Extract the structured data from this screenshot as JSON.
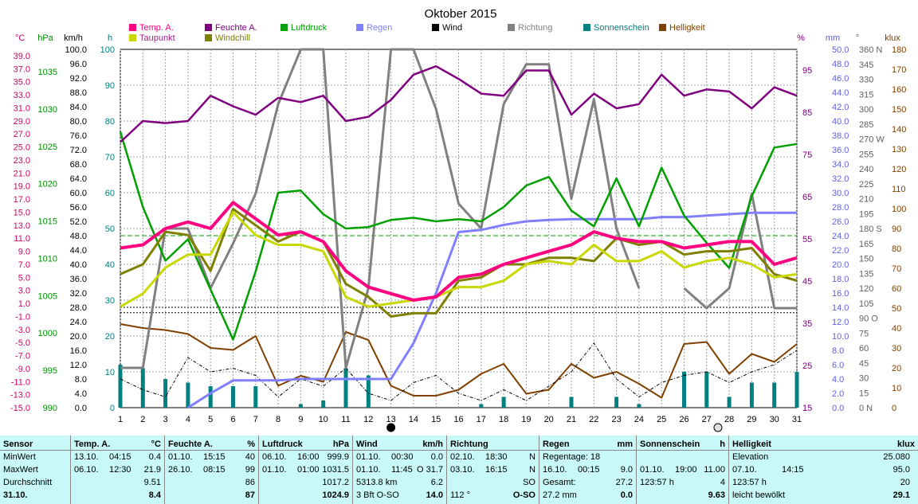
{
  "title": "Oktober 2015",
  "legend": [
    {
      "label": "Temp. A.",
      "color": "#ff0080"
    },
    {
      "label": "Taupunkt",
      "color": "#c8d800"
    },
    {
      "label": "Feuchte A.",
      "color": "#800080"
    },
    {
      "label": "Windchill",
      "color": "#808000"
    },
    {
      "label": "Luftdruck",
      "color": "#00a000"
    },
    {
      "label": "Regen",
      "color": "#8080ff"
    },
    {
      "label": "Wind",
      "color": "#000000"
    },
    {
      "label": "Richtung",
      "color": "#808080"
    },
    {
      "label": "Sonnenschein",
      "color": "#008080"
    },
    {
      "label": "Helligkeit",
      "color": "#804000"
    }
  ],
  "unit_labels": {
    "celsius": "°C",
    "hpa": "hPa",
    "kmh": "km/h",
    "h": "h",
    "pct": "%",
    "mm": "mm",
    "deg": "°",
    "klux": "klux"
  },
  "axes": {
    "celsius": [
      "39.0",
      "37.0",
      "35.0",
      "33.0",
      "31.0",
      "29.0",
      "27.0",
      "25.0",
      "23.0",
      "21.0",
      "19.0",
      "17.0",
      "15.0",
      "13.0",
      "11.0",
      "9.0",
      "7.0",
      "5.0",
      "3.0",
      "1.0",
      "-1.0",
      "-3.0",
      "-5.0",
      "-7.0",
      "-9.0",
      "-11.0",
      "-13.0",
      "-15.0"
    ],
    "hpa": [
      "1035",
      "1030",
      "1025",
      "1020",
      "1015",
      "1010",
      "1005",
      "1000",
      "995",
      "990"
    ],
    "kmh": [
      "100.0",
      "96.0",
      "92.0",
      "88.0",
      "84.0",
      "80.0",
      "76.0",
      "72.0",
      "68.0",
      "64.0",
      "60.0",
      "56.0",
      "52.0",
      "48.0",
      "44.0",
      "40.0",
      "36.0",
      "32.0",
      "28.0",
      "24.0",
      "20.0",
      "16.0",
      "12.0",
      "8.0",
      "4.0",
      "0.0"
    ],
    "hours": [
      "100",
      "90",
      "80",
      "70",
      "60",
      "50",
      "40",
      "30",
      "20",
      "10",
      "0"
    ],
    "pct": [
      "95",
      "85",
      "75",
      "65",
      "55",
      "45",
      "35",
      "25",
      "15"
    ],
    "mm": [
      "50.0",
      "48.0",
      "46.0",
      "44.0",
      "42.0",
      "40.0",
      "38.0",
      "36.0",
      "34.0",
      "32.0",
      "30.0",
      "28.0",
      "26.0",
      "24.0",
      "22.0",
      "20.0",
      "18.0",
      "16.0",
      "14.0",
      "12.0",
      "10.0",
      "8.0",
      "6.0",
      "4.0",
      "2.0",
      "0.0"
    ],
    "deg": [
      "360 N",
      "345",
      "330",
      "315",
      "300",
      "285",
      "270 W",
      "255",
      "240",
      "225",
      "210",
      "195",
      "180 S",
      "165",
      "150",
      "135",
      "120",
      "105",
      "90 O",
      "75",
      "60",
      "45",
      "30",
      "15",
      "0 N"
    ],
    "klux": [
      "180",
      "170",
      "160",
      "150",
      "140",
      "130",
      "120",
      "110",
      "100",
      "90",
      "80",
      "70",
      "60",
      "50",
      "40",
      "30",
      "20",
      "10",
      "0"
    ],
    "days": [
      "1",
      "2",
      "3",
      "4",
      "5",
      "6",
      "7",
      "8",
      "9",
      "10",
      "11",
      "12",
      "13",
      "14",
      "15",
      "16",
      "17",
      "18",
      "19",
      "20",
      "21",
      "22",
      "23",
      "24",
      "25",
      "26",
      "27",
      "28",
      "29",
      "30",
      "31"
    ]
  },
  "chart_data": {
    "type": "line",
    "title": "Oktober 2015",
    "x": [
      1,
      2,
      3,
      4,
      5,
      6,
      7,
      8,
      9,
      10,
      11,
      12,
      13,
      14,
      15,
      16,
      17,
      18,
      19,
      20,
      21,
      22,
      23,
      24,
      25,
      26,
      27,
      28,
      29,
      30,
      31
    ],
    "series": [
      {
        "name": "Temp. A.",
        "unit": "°C",
        "color": "#ff0080",
        "values": [
          9.5,
          10,
          12.5,
          13.5,
          12.5,
          16.5,
          14,
          11.5,
          12,
          10.5,
          6,
          3.5,
          2.5,
          1.5,
          2,
          5,
          5.5,
          7,
          8,
          9,
          10,
          12,
          11,
          10.5,
          10.5,
          9.5,
          10,
          10.5,
          10.5,
          7,
          8
        ]
      },
      {
        "name": "Taupunkt",
        "unit": "°C",
        "color": "#c8d800",
        "values": [
          0.5,
          2.5,
          6.5,
          8.5,
          8.5,
          15,
          11.5,
          10,
          10,
          9,
          2,
          0.5,
          1,
          1.5,
          2,
          3.5,
          3.5,
          4.5,
          7,
          7.5,
          7,
          10,
          7.5,
          7.5,
          9,
          6.5,
          7.5,
          8,
          7,
          5,
          5.5
        ]
      },
      {
        "name": "Feuchte A.",
        "unit": "%",
        "color": "#800080",
        "values": [
          78,
          83,
          82.5,
          83,
          89,
          86.5,
          84.5,
          88.5,
          87.5,
          89,
          83,
          84,
          88,
          94,
          96,
          93,
          89.5,
          89,
          95,
          95,
          84.5,
          89.5,
          86,
          87,
          94,
          89,
          90.5,
          90,
          86,
          91,
          89
        ]
      },
      {
        "name": "Windchill",
        "unit": "°C",
        "color": "#808000",
        "values": [
          5.5,
          7,
          12,
          11.5,
          6,
          15.5,
          13,
          10.5,
          12,
          10.5,
          4,
          2,
          -1,
          -0.5,
          -0.5,
          4.5,
          5,
          7,
          7,
          8,
          8,
          7.5,
          11,
          10,
          10.5,
          8.5,
          9,
          9,
          9.5,
          5.5,
          4.5
        ]
      },
      {
        "name": "Luftdruck",
        "unit": "hPa",
        "color": "#00a000",
        "values": [
          1028.5,
          1018,
          1010.5,
          1013.5,
          1006.5,
          999.5,
          1009,
          1020,
          1020.3,
          1017,
          1015,
          1015.2,
          1016.2,
          1016.5,
          1016,
          1016.3,
          1016,
          1018,
          1021,
          1022.2,
          1017.5,
          1015.3,
          1022,
          1015.3,
          1023.5,
          1016.8,
          1013,
          1009.5,
          1019.5,
          1026.3,
          1026.8
        ]
      },
      {
        "name": "Regen",
        "unit": "mm",
        "color": "#8080ff",
        "values": [
          null,
          null,
          null,
          0,
          2,
          3.8,
          3.8,
          3.8,
          4,
          4,
          4,
          4,
          4,
          9,
          16,
          24.5,
          24.8,
          25.5,
          26,
          26.2,
          26.3,
          26.3,
          26.3,
          26.3,
          26.6,
          26.6,
          26.8,
          27,
          27.2,
          27.2,
          27.2
        ]
      },
      {
        "name": "Wind",
        "unit": "km/h",
        "color": "#000000",
        "values": [
          8,
          5,
          3,
          14,
          10,
          11,
          9,
          3,
          8,
          6,
          11,
          4,
          2,
          7,
          9,
          4,
          2,
          5,
          2,
          6,
          10,
          18,
          8,
          3,
          7,
          9,
          10,
          7,
          10,
          12,
          16
        ]
      },
      {
        "name": "Richtung",
        "unit": "°",
        "color": "#808080",
        "values": [
          40,
          40,
          180,
          180,
          120,
          165,
          215,
          305,
          360,
          360,
          40,
          120,
          360,
          360,
          300,
          205,
          180,
          305,
          345,
          345,
          210,
          310,
          180,
          120,
          null,
          120,
          100,
          120,
          215,
          100,
          100
        ]
      },
      {
        "name": "Sonnenschein",
        "unit": "h",
        "color": "#008080",
        "values": [
          12,
          11,
          8,
          7,
          6,
          6,
          6,
          0,
          1,
          2,
          11,
          9,
          0,
          0,
          0,
          0,
          1,
          3,
          0,
          0,
          3,
          0,
          3,
          1,
          0,
          10,
          10,
          3,
          7,
          7,
          10
        ]
      },
      {
        "name": "Helligkeit",
        "unit": "klux",
        "color": "#804000",
        "values": [
          42,
          40,
          39,
          37,
          30,
          29,
          36,
          11,
          16,
          13,
          38,
          34,
          11,
          6,
          6,
          9,
          17,
          22,
          7,
          9,
          22,
          15,
          18,
          12,
          5,
          32,
          33,
          17,
          27,
          23,
          32
        ]
      }
    ],
    "reference_lines": [
      {
        "axis": "kmh",
        "value": 48.0,
        "color": "#00a000",
        "style": "dashed"
      },
      {
        "axis": "kmh",
        "value": 28.0,
        "color": "#000000",
        "style": "dotted"
      },
      {
        "axis": "kmh",
        "value": 26.5,
        "color": "#000000",
        "style": "dotted"
      }
    ],
    "markers": [
      {
        "day": 13,
        "symbol": "new-moon"
      },
      {
        "day": 27.5,
        "symbol": "full-moon"
      }
    ],
    "grid": true
  },
  "stats": {
    "sensor": {
      "title": "Sensor",
      "rows": [
        "MinWert",
        "MaxWert",
        "Durchschnitt",
        "31.10."
      ]
    },
    "temp": {
      "title": "Temp. A.",
      "unit": "°C",
      "rows": [
        [
          "13.10.",
          "04:15",
          "0.4"
        ],
        [
          "06.10.",
          "12:30",
          "21.9"
        ],
        [
          "",
          "",
          "9.51"
        ],
        [
          "",
          "",
          "8.4"
        ]
      ]
    },
    "feuchte": {
      "title": "Feuchte A.",
      "unit": "%",
      "rows": [
        [
          "01.10.",
          "15:15",
          "40"
        ],
        [
          "26.10.",
          "08:15",
          "99"
        ],
        [
          "",
          "",
          "86"
        ],
        [
          "",
          "",
          "87"
        ]
      ]
    },
    "luftdruck": {
      "title": "Luftdruck",
      "unit": "hPa",
      "rows": [
        [
          "06.10.",
          "16:00",
          "999.9"
        ],
        [
          "01.10.",
          "01:00",
          "1031.5"
        ],
        [
          "",
          "",
          "1017.2"
        ],
        [
          "",
          "",
          "1024.9"
        ]
      ]
    },
    "wind": {
      "title": "Wind",
      "unit": "km/h",
      "rows": [
        [
          "01.10.",
          "00:30",
          "0.0"
        ],
        [
          "01.10.",
          "11:45",
          "O 31.7"
        ],
        [
          "5313.8 km",
          "",
          "6.2"
        ],
        [
          "3 Bft O-SO",
          "",
          "14.0"
        ]
      ]
    },
    "richtung": {
      "title": "Richtung",
      "rows": [
        [
          "02.10.",
          "18:30",
          "N"
        ],
        [
          "03.10.",
          "16:15",
          "N"
        ],
        [
          "",
          "",
          "SO"
        ],
        [
          "112 °",
          "",
          "O-SO"
        ]
      ]
    },
    "regen": {
      "title": "Regen",
      "unit": "mm",
      "rows": [
        [
          "Regentage: 18",
          "",
          ""
        ],
        [
          "16.10.",
          "00:15",
          "9.0"
        ],
        [
          "Gesamt:",
          "",
          "27.2"
        ],
        [
          "27.2 mm",
          "",
          "0.0"
        ]
      ]
    },
    "sonne": {
      "title": "Sonnenschein",
      "unit": "h",
      "rows": [
        [
          "",
          "",
          ""
        ],
        [
          "01.10.",
          "19:00",
          "11.00"
        ],
        [
          "123:57 h",
          "",
          "4"
        ],
        [
          "",
          "",
          "9.63"
        ]
      ]
    },
    "hell": {
      "title": "Helligkeit",
      "unit": "klux",
      "rows": [
        [
          "Elevation",
          "",
          "25.080"
        ],
        [
          "07.10.",
          "14:15",
          "95.0"
        ],
        [
          "123:57 h",
          "",
          "20"
        ],
        [
          "leicht bewölkt",
          "",
          "29.1"
        ]
      ]
    }
  }
}
